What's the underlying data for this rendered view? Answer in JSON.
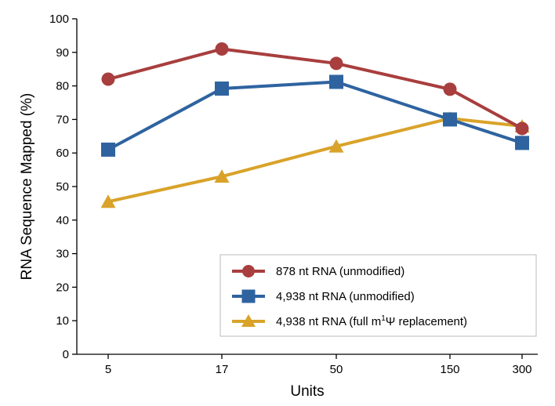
{
  "chart_data": {
    "type": "line",
    "title": "",
    "xlabel": "Units",
    "ylabel": "RNA Sequence Mapped (%)",
    "categories": [
      "5",
      "17",
      "50",
      "150",
      "300"
    ],
    "ylim": [
      0,
      100
    ],
    "yticks": [
      "0",
      "10",
      "20",
      "30",
      "40",
      "50",
      "60",
      "70",
      "80",
      "90",
      "100"
    ],
    "grid": false,
    "legend_position": "bottom-right",
    "series": [
      {
        "name": "878 nt RNA (unmodified)",
        "marker": "circle",
        "color": "#a83e3e",
        "values": [
          82,
          91,
          86.7,
          79,
          67.3
        ]
      },
      {
        "name": "4,938 nt RNA (unmodified)",
        "marker": "square",
        "color": "#2e63a0",
        "values": [
          61,
          79.2,
          81.2,
          70,
          63
        ]
      },
      {
        "name_prefix": "4,938 nt RNA (full m",
        "name_sup": "1",
        "name_suffix": "Ψ replacement)",
        "marker": "triangle",
        "color": "#d9a32a",
        "values": [
          45.5,
          53,
          62,
          70.3,
          68
        ]
      }
    ]
  }
}
